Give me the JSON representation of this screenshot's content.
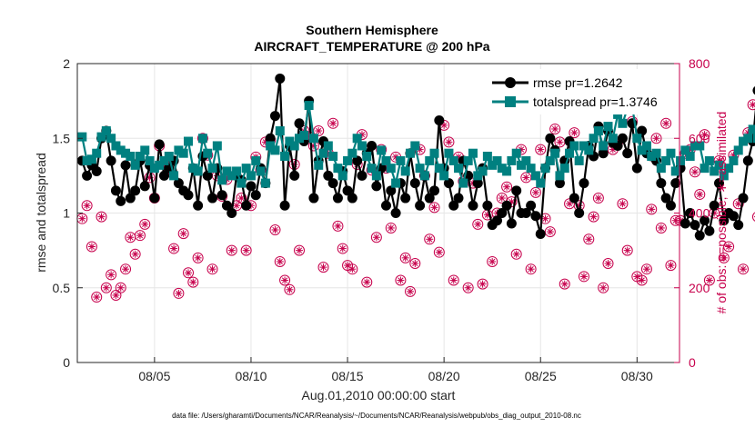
{
  "chart_data": {
    "type": "line",
    "title": "Southern Hemisphere",
    "subtitle": "AIRCRAFT_TEMPERATURE @ 200 hPa",
    "xlabel": "Aug.01,2010 00:00:00 start",
    "ylabel": "rmse and totalspread",
    "ylabel_right": "# of obs: o=possible; ∗=assimilated",
    "footer": "data file: /Users/gharamti/Documents/NCAR/Reanalysis/~/Documents/NCAR/Reanalysis/webpub/obs_diag_output_2010-08.nc",
    "xlim": [
      1,
      32.2
    ],
    "ylim": [
      0,
      2
    ],
    "ylim_right": [
      0,
      800
    ],
    "x_ticks": [
      5,
      10,
      15,
      20,
      25,
      30
    ],
    "x_tick_labels": [
      "08/05",
      "08/10",
      "08/15",
      "08/20",
      "08/25",
      "08/30"
    ],
    "y_ticks": [
      0,
      0.5,
      1,
      1.5,
      2
    ],
    "y_tick_labels": [
      "0",
      "0.5",
      "1",
      "1.5",
      "2"
    ],
    "y_ticks_right": [
      0,
      200,
      400,
      600,
      800
    ],
    "y_tick_labels_right": [
      "0",
      "200",
      "400",
      "600",
      "800"
    ],
    "grid": true,
    "legend_position": "top-right",
    "colors": {
      "rmse": "#000000",
      "totalspread": "#008080",
      "obs": "#c7004c"
    },
    "x_start": 1.25,
    "x_step": 0.25,
    "series": [
      {
        "name": "rmse pr=1.2642",
        "axis": "left",
        "marker": "circle",
        "values": [
          1.35,
          1.25,
          1.32,
          1.28,
          1.5,
          1.55,
          1.35,
          1.15,
          1.08,
          1.32,
          1.1,
          1.15,
          1.35,
          1.18,
          1.32,
          1.1,
          1.46,
          1.25,
          1.3,
          1.35,
          1.2,
          1.15,
          1.12,
          1.3,
          1.05,
          1.38,
          1.25,
          1.1,
          1.3,
          1.12,
          1.05,
          1.0,
          1.25,
          1.22,
          1.05,
          1.18,
          1.12,
          1.3,
          1.2,
          1.5,
          1.65,
          1.9,
          1.05,
          1.45,
          1.25,
          1.6,
          1.48,
          1.75,
          1.1,
          1.35,
          1.48,
          1.25,
          1.2,
          1.1,
          1.28,
          1.15,
          1.1,
          1.35,
          1.25,
          1.4,
          1.45,
          1.18,
          1.3,
          1.05,
          1.15,
          1.0,
          1.2,
          1.1,
          1.4,
          1.2,
          1.05,
          1.25,
          1.1,
          1.15,
          1.62,
          1.3,
          1.2,
          1.05,
          1.1,
          1.35,
          1.25,
          1.05,
          1.2,
          1.3,
          1.05,
          0.92,
          0.95,
          1.0,
          1.05,
          0.93,
          1.15,
          1.0,
          1.0,
          1.05,
          0.98,
          0.86,
          1.3,
          1.5,
          1.42,
          1.2,
          1.35,
          1.48,
          1.1,
          1.0,
          1.2,
          1.45,
          1.38,
          1.58,
          1.4,
          1.55,
          1.47,
          1.45,
          1.5,
          1.4,
          1.6,
          1.3,
          1.55,
          1.4,
          1.38,
          1.35,
          1.2,
          1.1,
          1.05,
          1.2,
          1.3,
          0.93,
          1.0,
          0.92,
          0.85,
          0.95,
          0.88,
          1.05,
          1.2,
          0.95,
          1.0,
          0.98,
          0.92,
          1.1,
          1.35,
          1.48,
          1.82,
          1.37
        ]
      },
      {
        "name": "totalspread pr=1.3746",
        "axis": "left",
        "marker": "square",
        "values": [
          1.51,
          1.35,
          1.36,
          1.4,
          1.51,
          1.55,
          1.5,
          1.45,
          1.42,
          1.4,
          1.38,
          1.32,
          1.38,
          1.42,
          1.35,
          1.3,
          1.32,
          1.35,
          1.38,
          1.25,
          1.42,
          1.4,
          1.48,
          1.3,
          1.28,
          1.5,
          1.4,
          1.3,
          1.45,
          1.22,
          1.28,
          1.25,
          1.28,
          1.2,
          1.3,
          1.25,
          1.35,
          1.28,
          1.2,
          1.45,
          1.42,
          1.55,
          1.38,
          1.48,
          1.45,
          1.5,
          1.52,
          1.72,
          1.5,
          1.32,
          1.4,
          1.45,
          1.38,
          1.3,
          1.25,
          1.35,
          1.4,
          1.5,
          1.45,
          1.38,
          1.3,
          1.25,
          1.42,
          1.35,
          1.3,
          1.2,
          1.35,
          1.28,
          1.4,
          1.45,
          1.3,
          1.25,
          1.35,
          1.4,
          1.3,
          1.25,
          1.4,
          1.35,
          1.3,
          1.2,
          1.35,
          1.4,
          1.25,
          1.28,
          1.38,
          1.32,
          1.35,
          1.3,
          1.28,
          1.35,
          1.4,
          1.32,
          1.35,
          1.3,
          1.25,
          1.2,
          1.3,
          1.35,
          1.4,
          1.25,
          1.3,
          1.4,
          1.45,
          1.35,
          1.45,
          1.42,
          1.5,
          1.55,
          1.45,
          1.58,
          1.5,
          1.66,
          1.6,
          1.7,
          1.72,
          1.5,
          1.42,
          1.45,
          1.38,
          1.4,
          1.3,
          1.35,
          1.4,
          1.28,
          1.35,
          1.42,
          1.38,
          1.45,
          1.45,
          1.3,
          1.35,
          1.28,
          1.32,
          1.25,
          1.3,
          1.35,
          1.42,
          1.48,
          1.5,
          1.56,
          1.5
        ]
      }
    ],
    "obs_possible": {
      "axis": "right",
      "values": [
        385,
        420,
        310,
        175,
        390,
        200,
        235,
        180,
        200,
        250,
        335,
        290,
        340,
        370,
        495,
        440,
        580,
        530,
        510,
        305,
        185,
        345,
        240,
        215,
        280,
        600,
        555,
        250,
        500,
        445,
        490,
        300,
        420,
        440,
        300,
        420,
        550,
        515,
        590,
        595,
        355,
        270,
        220,
        195,
        530,
        300,
        620,
        605,
        580,
        620,
        255,
        560,
        640,
        365,
        305,
        260,
        250,
        530,
        610,
        215,
        515,
        335,
        570,
        520,
        360,
        550,
        220,
        280,
        190,
        265,
        570,
        500,
        330,
        415,
        295,
        635,
        590,
        220,
        550,
        485,
        200,
        480,
        370,
        210,
        395,
        270,
        400,
        440,
        470,
        430,
        290,
        570,
        495,
        250,
        455,
        570,
        385,
        350,
        625,
        590,
        210,
        425,
        615,
        420,
        230,
        330,
        390,
        440,
        200,
        265,
        570,
        590,
        425,
        300,
        645,
        230,
        220,
        250,
        410,
        600,
        360,
        640,
        260,
        380,
        380,
        560,
        570,
        510,
        450,
        610,
        220,
        400,
        540,
        280,
        310,
        555,
        425,
        250,
        615,
        690,
        390,
        160
      ],
      "label": "o"
    },
    "obs_assimilated": {
      "axis": "right",
      "values": [
        385,
        420,
        310,
        175,
        390,
        200,
        235,
        180,
        200,
        250,
        335,
        290,
        340,
        370,
        495,
        440,
        580,
        530,
        510,
        305,
        185,
        345,
        240,
        215,
        280,
        600,
        555,
        250,
        500,
        445,
        490,
        300,
        420,
        440,
        300,
        420,
        550,
        515,
        590,
        595,
        355,
        270,
        220,
        195,
        530,
        300,
        620,
        605,
        580,
        620,
        255,
        560,
        640,
        365,
        305,
        260,
        250,
        530,
        610,
        215,
        515,
        335,
        570,
        520,
        360,
        550,
        220,
        280,
        190,
        265,
        570,
        500,
        330,
        415,
        295,
        635,
        590,
        220,
        550,
        485,
        200,
        480,
        370,
        210,
        395,
        270,
        400,
        440,
        470,
        430,
        290,
        570,
        495,
        250,
        455,
        570,
        385,
        350,
        625,
        590,
        210,
        425,
        615,
        420,
        230,
        330,
        390,
        440,
        200,
        265,
        570,
        590,
        425,
        300,
        645,
        230,
        220,
        250,
        410,
        600,
        360,
        640,
        260,
        380,
        380,
        560,
        570,
        510,
        450,
        610,
        220,
        400,
        540,
        280,
        310,
        555,
        425,
        250,
        615,
        690,
        390,
        160
      ],
      "label": "∗"
    }
  }
}
